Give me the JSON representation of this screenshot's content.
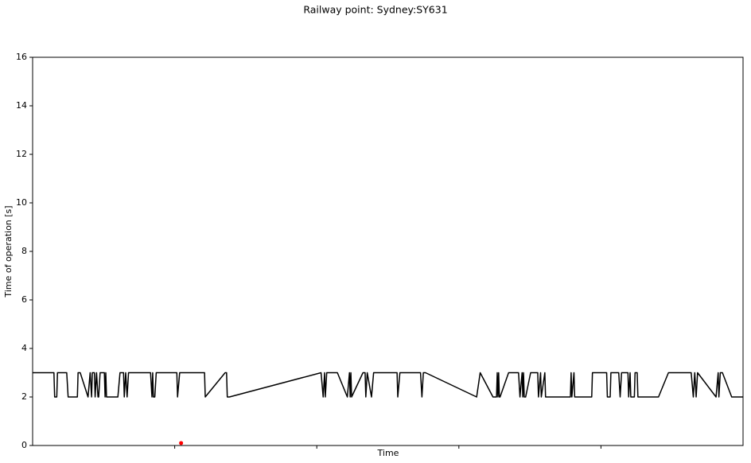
{
  "chart_data": {
    "type": "line",
    "title": "Railway point: Sydney:SY631",
    "xlabel": "Time",
    "ylabel": "Time of operation [s]",
    "xlim": [
      0,
      100
    ],
    "xticks": [
      20,
      40,
      60,
      80
    ],
    "ylim": [
      0,
      16
    ],
    "yticks": [
      0,
      2,
      4,
      6,
      8,
      10,
      12,
      14,
      16
    ],
    "series": [
      {
        "type": "line",
        "color": "#000000",
        "x": [
          0,
          3.0,
          3.1,
          3.4,
          3.5,
          4.8,
          5.0,
          6.3,
          6.4,
          6.7,
          7.8,
          8.1,
          8.3,
          8.4,
          8.7,
          8.8,
          9.0,
          9.2,
          9.3,
          9.5,
          10.1,
          10.2,
          10.3,
          10.4,
          12.0,
          12.3,
          12.8,
          12.9,
          13.1,
          13.3,
          13.5,
          16.6,
          16.8,
          16.9,
          17.0,
          17.2,
          17.4,
          20.3,
          20.4,
          20.7,
          24.2,
          24.3,
          27.1,
          27.3,
          27.4,
          27.7,
          40.6,
          40.9,
          41.1,
          41.2,
          41.4,
          42.9,
          44.3,
          44.6,
          44.7,
          44.8,
          44.9,
          46.5,
          46.8,
          46.9,
          47.1,
          47.7,
          48.0,
          51.3,
          51.4,
          51.7,
          54.6,
          54.8,
          55.0,
          55.3,
          62.5,
          63.0,
          64.8,
          65.3,
          65.4,
          65.5,
          65.6,
          65.7,
          65.8,
          67.0,
          68.4,
          68.6,
          68.9,
          69.0,
          69.1,
          69.2,
          69.4,
          70.1,
          71.1,
          71.2,
          71.5,
          71.6,
          72.1,
          72.2,
          72.6,
          75.7,
          75.8,
          75.9,
          76.2,
          76.3,
          78.7,
          78.8,
          80.8,
          80.9,
          81.3,
          81.4,
          82.5,
          82.7,
          82.9,
          83.8,
          83.9,
          84.1,
          84.2,
          84.7,
          84.8,
          85.1,
          85.2,
          88.1,
          89.5,
          92.7,
          93.0,
          93.2,
          93.4,
          93.6,
          96.2,
          96.5,
          96.6,
          96.8,
          97.1,
          98.4,
          100
        ],
        "values": [
          3,
          3,
          2,
          2,
          3,
          3,
          2,
          2,
          3,
          3,
          2,
          3,
          2,
          3,
          3,
          2,
          3,
          2,
          2,
          3,
          3,
          2,
          3,
          2,
          2,
          3,
          3,
          2,
          3,
          2,
          3,
          3,
          2,
          3,
          2,
          2,
          3,
          3,
          2,
          3,
          3,
          2,
          3,
          3,
          2,
          2,
          3,
          2,
          3,
          2,
          3,
          3,
          2,
          3,
          2,
          3,
          2,
          3,
          3,
          2,
          3,
          2,
          3,
          3,
          2,
          3,
          3,
          2,
          3,
          3,
          2,
          3,
          2,
          2,
          3,
          2,
          3,
          2,
          2,
          3,
          3,
          2,
          3,
          2,
          3,
          2,
          2,
          3,
          3,
          2,
          3,
          2,
          3,
          2,
          2,
          2,
          3,
          2,
          3,
          2,
          2,
          3,
          3,
          2,
          2,
          3,
          3,
          2,
          3,
          3,
          2,
          3,
          2,
          2,
          3,
          3,
          2,
          2,
          3,
          3,
          2,
          3,
          2,
          3,
          2,
          3,
          2,
          3,
          3,
          2,
          2
        ]
      },
      {
        "type": "scatter",
        "color": "#ff0000",
        "x": [
          20.9
        ],
        "values": [
          0.1
        ]
      }
    ]
  }
}
